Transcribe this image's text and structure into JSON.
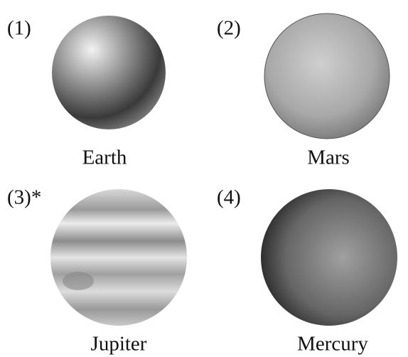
{
  "items": [
    {
      "number": "(1)",
      "label": "Earth"
    },
    {
      "number": "(2)",
      "label": "Mars"
    },
    {
      "number": "(3)*",
      "label": "Jupiter"
    },
    {
      "number": "(4)",
      "label": "Mercury"
    }
  ]
}
